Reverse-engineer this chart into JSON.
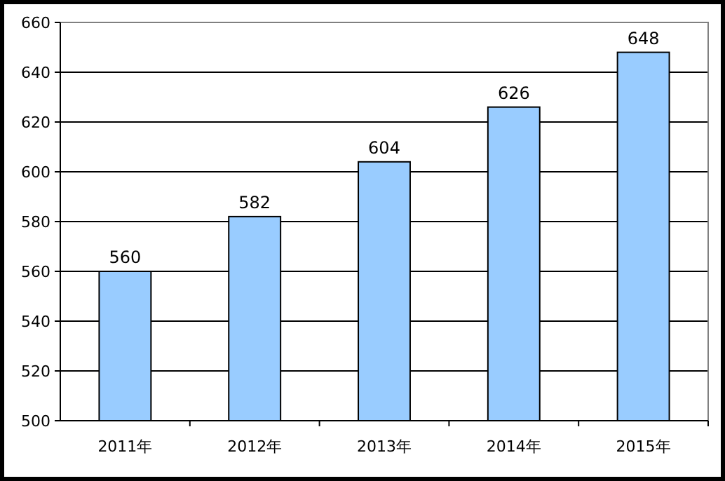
{
  "chart_data": {
    "type": "bar",
    "categories": [
      "2011年",
      "2012年",
      "2013年",
      "2014年",
      "2015年"
    ],
    "values": [
      560,
      582,
      604,
      626,
      648
    ],
    "color": "#99ccff",
    "ylim": [
      500,
      660
    ],
    "yticks": [
      500,
      520,
      540,
      560,
      580,
      600,
      620,
      640,
      660
    ],
    "grid": "y",
    "data_labels": true
  }
}
